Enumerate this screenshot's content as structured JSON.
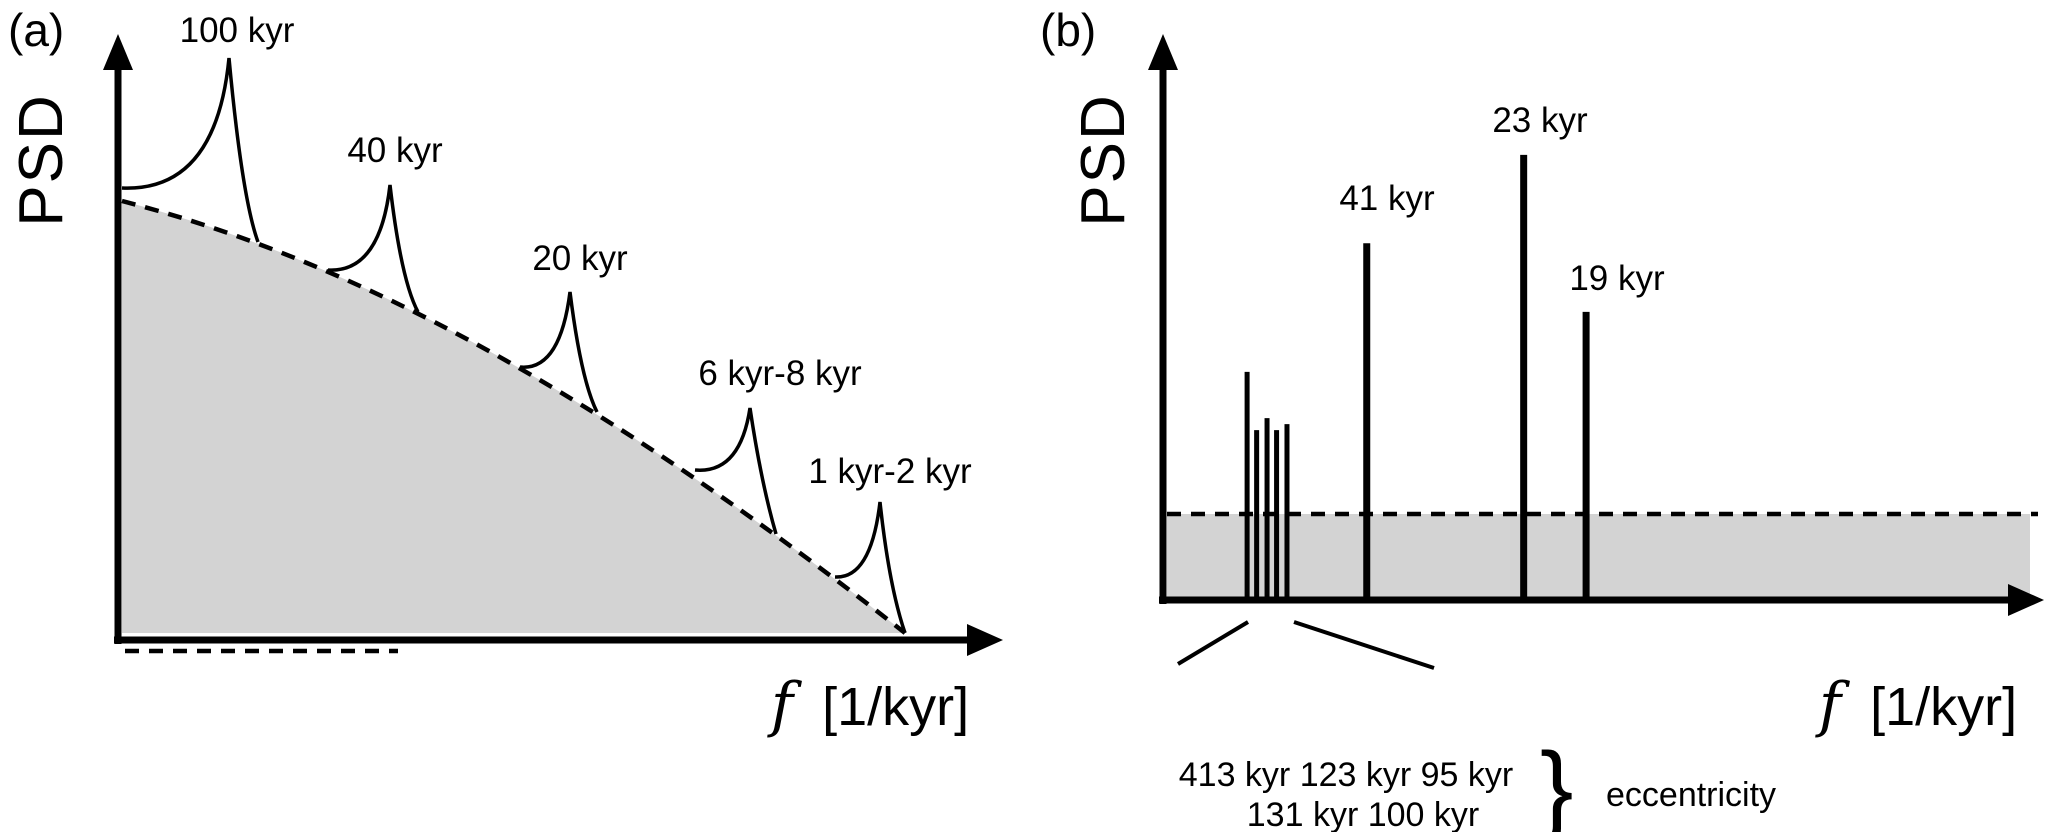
{
  "figure": {
    "panel_a": {
      "tag": "(a)",
      "ylabel": "PSD",
      "xlabel_f": "f",
      "xlabel_rest": "[1/kyr]",
      "peak_labels": [
        "100 kyr",
        "40 kyr",
        "20 kyr",
        "6 kyr-8 kyr",
        "1 kyr-2 kyr"
      ]
    },
    "panel_b": {
      "tag": "(b)",
      "ylabel": "PSD",
      "xlabel_f": "f",
      "xlabel_rest": "[1/kyr]",
      "peak_labels": [
        "41 kyr",
        "23 kyr",
        "19 kyr"
      ],
      "cluster_note_line1": "413 kyr 123 kyr 95 kyr",
      "cluster_note_line2": "131 kyr 100 kyr",
      "brace": "}",
      "cluster_note_term": "eccentricity"
    },
    "colors": {
      "shading": "#d3d3d3",
      "ink": "#000000"
    }
  },
  "chart_data": [
    {
      "type": "line",
      "panel": "a",
      "title": "Schematic PSD of a continuous record: red-noise background (dashed envelope, shaded) with cusp-shaped spectral peaks",
      "xlabel": "f [1/kyr]",
      "ylabel": "PSD",
      "axes_numeric": false,
      "peaks": [
        {
          "period": "100 kyr",
          "x_rel": 0.13,
          "value": 1.0
        },
        {
          "period": "40 kyr",
          "x_rel": 0.32,
          "value": 0.78
        },
        {
          "period": "20 kyr",
          "x_rel": 0.53,
          "value": 0.6
        },
        {
          "period": "6 kyr-8 kyr",
          "x_rel": 0.74,
          "value": 0.4
        },
        {
          "period": "1 kyr-2 kyr",
          "x_rel": 0.89,
          "value": 0.24
        }
      ],
      "background_envelope_rel": [
        [
          0.005,
          0.75
        ],
        [
          0.25,
          0.63
        ],
        [
          0.47,
          0.47
        ],
        [
          0.67,
          0.29
        ],
        [
          0.84,
          0.11
        ],
        [
          0.92,
          0.01
        ]
      ]
    },
    {
      "type": "bar",
      "panel": "b",
      "title": "Discrete spectral lines above a flat noise floor",
      "xlabel": "f [1/kyr]",
      "ylabel": "PSD",
      "axes_numeric": false,
      "noise_floor_value": 0.156,
      "lines": [
        {
          "period": "413 kyr",
          "in_eccentricity_brace": true,
          "x_rel": 0.097,
          "value": 0.415
        },
        {
          "period": "131 kyr",
          "in_eccentricity_brace": true,
          "x_rel": 0.108,
          "value": 0.308
        },
        {
          "period": "123 kyr",
          "in_eccentricity_brace": true,
          "x_rel": 0.12,
          "value": 0.33
        },
        {
          "period": "100 kyr",
          "in_eccentricity_brace": true,
          "x_rel": 0.131,
          "value": 0.308
        },
        {
          "period": "95 kyr",
          "in_eccentricity_brace": true,
          "x_rel": 0.143,
          "value": 0.319
        },
        {
          "period": "41 kyr",
          "in_eccentricity_brace": false,
          "x_rel": 0.235,
          "value": 0.651
        },
        {
          "period": "23 kyr",
          "in_eccentricity_brace": false,
          "x_rel": 0.416,
          "value": 0.813
        },
        {
          "period": "19 kyr",
          "in_eccentricity_brace": false,
          "x_rel": 0.488,
          "value": 0.525
        }
      ],
      "group_annotation": {
        "label": "eccentricity",
        "members": [
          "413 kyr",
          "131 kyr",
          "123 kyr",
          "100 kyr",
          "95 kyr"
        ]
      }
    }
  ]
}
